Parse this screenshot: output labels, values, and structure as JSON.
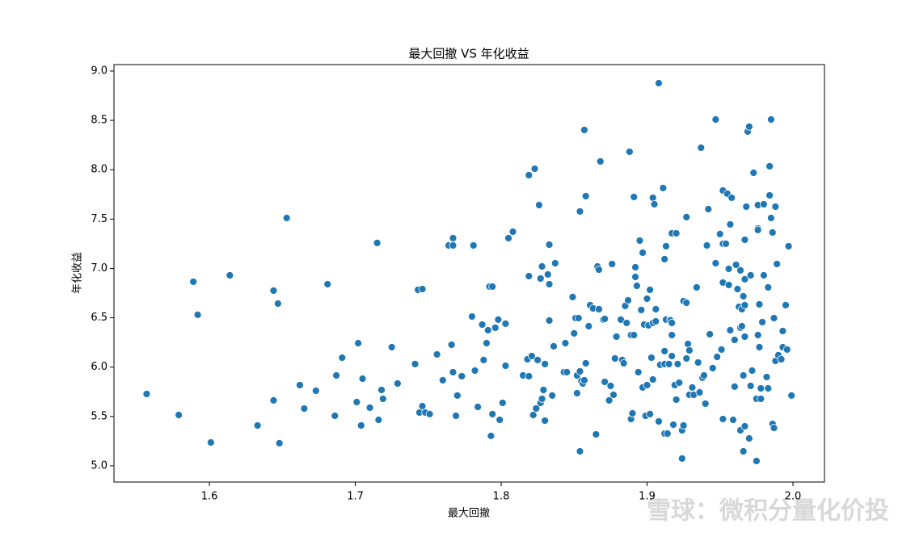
{
  "chart_data": {
    "type": "scatter",
    "title": "最大回撤 VS 年化收益",
    "x_label": "最大回撤",
    "y_label": "年化收益",
    "color": "#1f77b4",
    "watermark": "雪球：微积分量化价投",
    "xlim": [
      1.5346,
      2.0216
    ],
    "ylim": [
      4.836,
      9.065
    ],
    "xticks": [
      1.6,
      1.7,
      1.8,
      1.9,
      {
        "value": 2.0,
        "label": "2.0"
      }
    ],
    "yticks": [
      {
        "value": 5.0,
        "label": "5.0"
      },
      5.5,
      {
        "value": 6.0,
        "label": "6.0"
      },
      6.5,
      {
        "value": 7.0,
        "label": "7.0"
      },
      7.5,
      {
        "value": 8.0,
        "label": "8.0"
      },
      8.5,
      {
        "value": 9.0,
        "label": "9.0"
      }
    ],
    "x": [
      1.557,
      1.579,
      1.589,
      1.592,
      1.601,
      1.614,
      1.633,
      1.644,
      1.644,
      1.647,
      1.648,
      1.653,
      1.662,
      1.665,
      1.673,
      1.681,
      1.686,
      1.687,
      1.691,
      1.701,
      1.702,
      1.704,
      1.705,
      1.71,
      1.715,
      1.716,
      1.718,
      1.719,
      1.725,
      1.729,
      1.741,
      1.743,
      1.744,
      1.746,
      1.746,
      1.748,
      1.751,
      1.756,
      1.76,
      1.764,
      1.766,
      1.767,
      1.767,
      1.767,
      1.769,
      1.77,
      1.773,
      1.78,
      1.781,
      1.782,
      1.784,
      1.787,
      1.788,
      1.79,
      1.791,
      1.792,
      1.793,
      1.794,
      1.794,
      1.796,
      1.798,
      1.799,
      1.801,
      1.803,
      1.803,
      1.805,
      1.808,
      1.815,
      1.818,
      1.819,
      1.819,
      1.819,
      1.821,
      1.822,
      1.823,
      1.824,
      1.825,
      1.826,
      1.827,
      1.827,
      1.828,
      1.828,
      1.829,
      1.83,
      1.83,
      1.832,
      1.833,
      1.833,
      1.833,
      1.835,
      1.836,
      1.837,
      1.843,
      1.844,
      1.845,
      1.849,
      1.85,
      1.851,
      1.852,
      1.852,
      1.853,
      1.854,
      1.854,
      1.854,
      1.855,
      1.856,
      1.857,
      1.857,
      1.858,
      1.858,
      1.86,
      1.861,
      1.863,
      1.865,
      1.866,
      1.867,
      1.867,
      1.868,
      1.87,
      1.871,
      1.871,
      1.874,
      1.875,
      1.876,
      1.877,
      1.878,
      1.879,
      1.882,
      1.883,
      1.884,
      1.885,
      1.886,
      1.887,
      1.888,
      1.889,
      1.889,
      1.89,
      1.891,
      1.891,
      1.892,
      1.892,
      1.893,
      1.894,
      1.895,
      1.896,
      1.897,
      1.897,
      1.898,
      1.899,
      1.9,
      1.9,
      1.901,
      1.902,
      1.902,
      1.903,
      1.904,
      1.904,
      1.904,
      1.905,
      1.906,
      1.906,
      1.908,
      1.908,
      1.909,
      1.911,
      1.912,
      1.912,
      1.912,
      1.912,
      1.913,
      1.913,
      1.914,
      1.915,
      1.916,
      1.916,
      1.917,
      1.917,
      1.917,
      1.917,
      1.918,
      1.919,
      1.92,
      1.92,
      1.921,
      1.922,
      1.924,
      1.924,
      1.925,
      1.925,
      1.927,
      1.927,
      1.927,
      1.928,
      1.929,
      1.929,
      1.931,
      1.932,
      1.934,
      1.935,
      1.936,
      1.937,
      1.938,
      1.939,
      1.94,
      1.941,
      1.942,
      1.943,
      1.945,
      1.947,
      1.947,
      1.948,
      1.95,
      1.951,
      1.952,
      1.952,
      1.952,
      1.952,
      1.954,
      1.955,
      1.956,
      1.956,
      1.957,
      1.957,
      1.958,
      1.959,
      1.96,
      1.96,
      1.961,
      1.962,
      1.963,
      1.964,
      1.964,
      1.964,
      1.965,
      1.965,
      1.966,
      1.966,
      1.966,
      1.967,
      1.967,
      1.967,
      1.967,
      1.967,
      1.968,
      1.969,
      1.97,
      1.97,
      1.971,
      1.971,
      1.972,
      1.973,
      1.975,
      1.975,
      1.976,
      1.976,
      1.976,
      1.976,
      1.977,
      1.977,
      1.978,
      1.978,
      1.979,
      1.98,
      1.98,
      1.982,
      1.983,
      1.983,
      1.984,
      1.984,
      1.985,
      1.985,
      1.986,
      1.986,
      1.987,
      1.987,
      1.988,
      1.988,
      1.989,
      1.99,
      1.992,
      1.993,
      1.993,
      1.995,
      1.996,
      1.997,
      1.999
    ],
    "values": [
      5.728,
      5.515,
      6.865,
      6.53,
      5.237,
      6.93,
      5.409,
      6.775,
      5.663,
      6.644,
      5.229,
      7.511,
      5.818,
      5.581,
      5.761,
      6.84,
      5.507,
      5.916,
      6.096,
      5.646,
      6.243,
      5.409,
      5.883,
      5.589,
      7.258,
      5.466,
      5.769,
      5.679,
      6.202,
      5.834,
      6.031,
      6.783,
      5.54,
      6.791,
      5.605,
      5.54,
      5.524,
      6.129,
      5.867,
      7.233,
      6.227,
      7.233,
      7.307,
      5.949,
      5.507,
      5.712,
      5.908,
      6.513,
      7.233,
      5.965,
      5.597,
      6.431,
      6.072,
      6.243,
      6.374,
      6.816,
      5.303,
      6.816,
      5.524,
      6.399,
      6.481,
      5.466,
      5.638,
      6.44,
      6.014,
      7.307,
      7.372,
      5.916,
      6.08,
      7.945,
      5.908,
      6.922,
      6.112,
      5.515,
      8.01,
      5.581,
      6.072,
      7.642,
      5.638,
      6.898,
      5.679,
      7.02,
      5.769,
      6.031,
      5.458,
      6.939,
      7.241,
      6.84,
      6.472,
      5.712,
      6.211,
      7.053,
      5.949,
      6.243,
      5.949,
      6.71,
      6.342,
      6.497,
      5.736,
      5.916,
      6.497,
      5.147,
      7.577,
      5.957,
      5.859,
      5.834,
      5.867,
      8.403,
      7.732,
      6.039,
      6.415,
      6.628,
      6.595,
      5.319,
      7.02,
      6.988,
      6.587,
      8.084,
      6.481,
      5.851,
      6.489,
      5.663,
      5.81,
      7.045,
      5.72,
      6.088,
      6.309,
      6.481,
      6.072,
      6.039,
      6.62,
      6.448,
      6.677,
      8.182,
      6.325,
      5.474,
      5.532,
      6.325,
      7.724,
      7.012,
      6.914,
      6.824,
      5.949,
      7.282,
      6.579,
      7.159,
      5.794,
      6.431,
      5.507,
      6.693,
      5.818,
      6.423,
      5.524,
      6.783,
      6.096,
      5.875,
      6.448,
      7.716,
      7.65,
      6.587,
      6.464,
      8.877,
      5.45,
      6.023,
      7.815,
      6.162,
      6.031,
      7.094,
      5.327,
      7.225,
      6.481,
      5.327,
      6.031,
      6.481,
      6.472,
      6.448,
      7.356,
      6.112,
      6.325,
      5.417,
      5.818,
      7.356,
      5.671,
      6.031,
      5.842,
      5.074,
      5.36,
      5.409,
      6.669,
      7.52,
      6.652,
      6.088,
      6.235,
      6.17,
      5.72,
      5.794,
      5.72,
      6.808,
      6.047,
      5.744,
      8.223,
      5.892,
      5.916,
      5.63,
      7.233,
      7.601,
      6.333,
      5.99,
      7.053,
      8.509,
      6.104,
      7.348,
      6.178,
      6.857,
      5.474,
      7.25,
      7.789,
      7.25,
      7.757,
      6.832,
      6.996,
      7.446,
      6.374,
      7.716,
      5.466,
      6.276,
      5.802,
      7.037,
      6.791,
      6.611,
      6.399,
      6.98,
      5.36,
      6.587,
      6.415,
      6.718,
      5.147,
      5.916,
      6.628,
      5.401,
      6.89,
      6.309,
      7.29,
      7.626,
      8.387,
      5.278,
      8.436,
      6.93,
      5.81,
      5.965,
      7.969,
      5.679,
      5.049,
      7.642,
      7.405,
      6.325,
      7.389,
      6.636,
      6.202,
      5.679,
      5.785,
      6.456,
      7.65,
      6.93,
      5.9,
      5.785,
      6.808,
      8.035,
      7.74,
      8.509,
      7.511,
      7.364,
      5.425,
      6.497,
      5.384,
      7.626,
      6.063,
      7.045,
      6.121,
      6.08,
      6.202,
      6.366,
      6.628,
      6.178,
      7.225,
      5.712
    ]
  }
}
